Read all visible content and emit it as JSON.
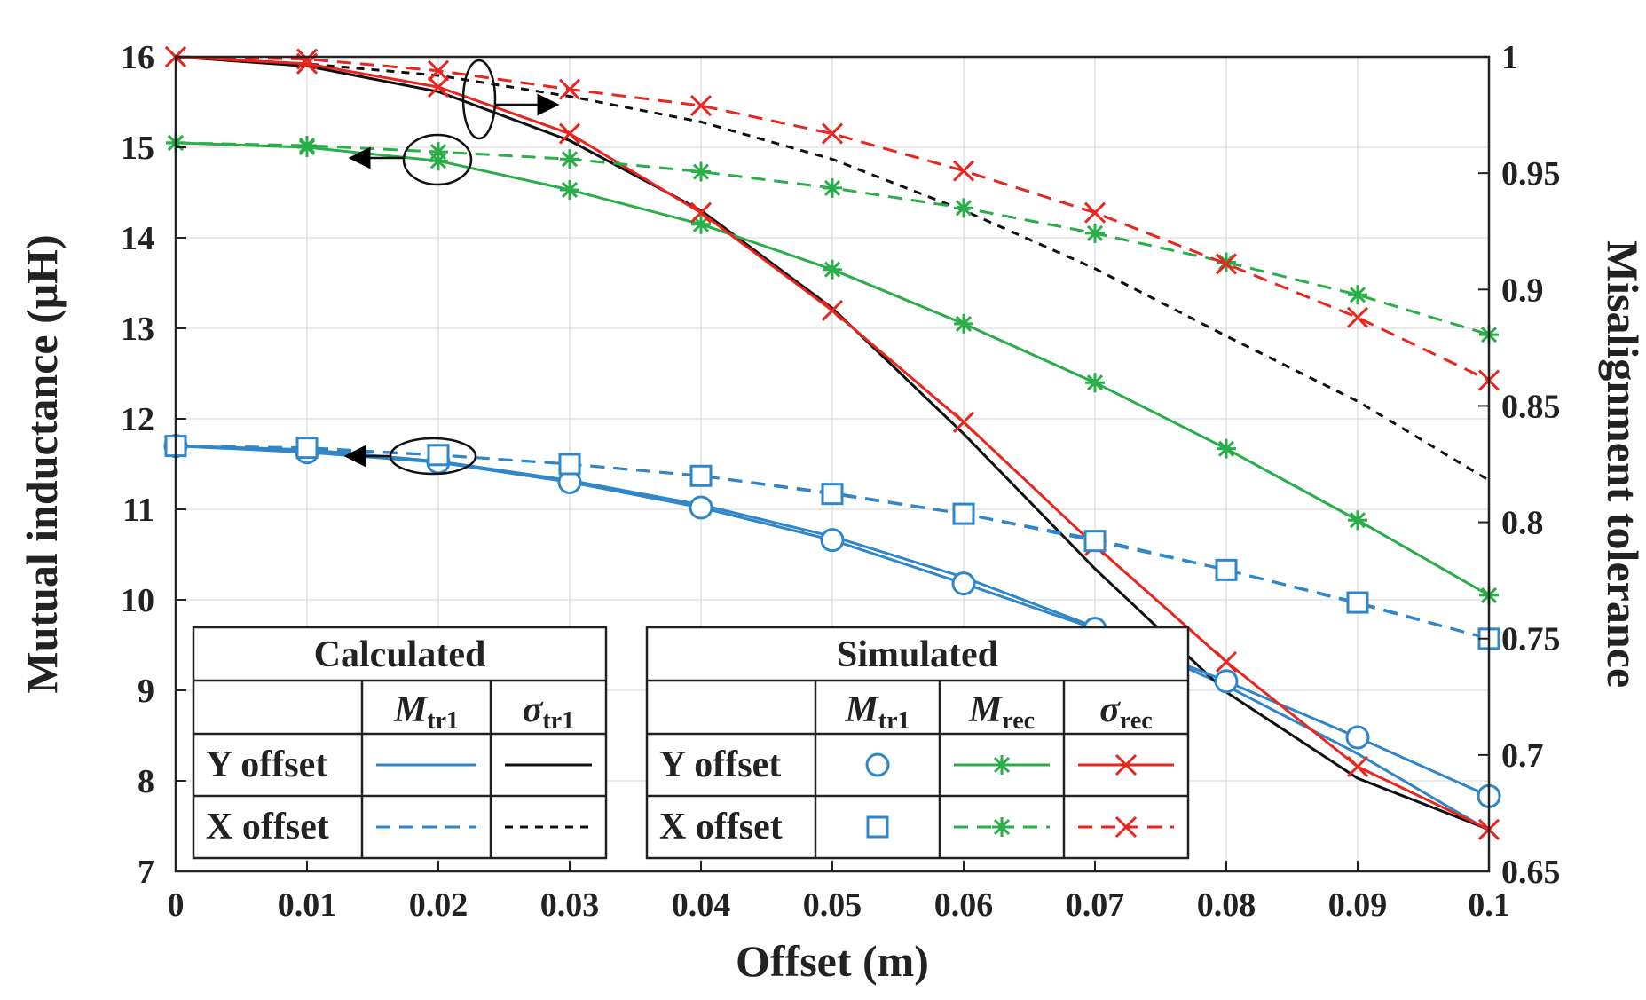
{
  "chart_data": {
    "type": "line",
    "xlabel": "Offset (m)",
    "ylabel_left": "Mutual inductance (μH)",
    "ylabel_right": "Misalignment tolerance",
    "xlim": [
      0,
      0.1
    ],
    "ylim_left": [
      7,
      16
    ],
    "ylim_right": [
      0.65,
      1
    ],
    "x_ticks": [
      "0",
      "0.01",
      "0.02",
      "0.03",
      "0.04",
      "0.05",
      "0.06",
      "0.07",
      "0.08",
      "0.09",
      "0.1"
    ],
    "y_left_ticks": [
      "7",
      "8",
      "9",
      "10",
      "11",
      "12",
      "13",
      "14",
      "15",
      "16"
    ],
    "y_right_ticks": [
      "0.65",
      "0.7",
      "0.75",
      "0.8",
      "0.85",
      "0.9",
      "0.95",
      "1"
    ],
    "grid": true,
    "x": [
      0,
      0.01,
      0.02,
      0.03,
      0.04,
      0.05,
      0.06,
      0.07,
      0.08,
      0.09,
      0.1
    ],
    "series": [
      {
        "group": "Calculated",
        "row": "Y offset",
        "quantity": "Mtr1",
        "axis": "left",
        "color": "#2f86c9",
        "dash": "solid",
        "marker": "none",
        "values": [
          11.7,
          11.66,
          11.53,
          11.32,
          11.05,
          10.7,
          10.25,
          9.7,
          9.05,
          8.3,
          7.45
        ]
      },
      {
        "group": "Calculated",
        "row": "Y offset",
        "quantity": "σtr1",
        "axis": "right",
        "color": "#111111",
        "dash": "solid",
        "marker": "none",
        "values": [
          1.0,
          0.996,
          0.985,
          0.964,
          0.934,
          0.892,
          0.838,
          0.78,
          0.727,
          0.69,
          0.668
        ]
      },
      {
        "group": "Calculated",
        "row": "X offset",
        "quantity": "Mtr1",
        "axis": "left",
        "color": "#2f86c9",
        "dash": "dashed",
        "marker": "none",
        "values": [
          11.7,
          11.67,
          11.6,
          11.5,
          11.37,
          11.18,
          10.95,
          10.67,
          10.33,
          9.96,
          9.57
        ]
      },
      {
        "group": "Calculated",
        "row": "X offset",
        "quantity": "σtr1",
        "axis": "right",
        "color": "#111111",
        "dash": "dashed",
        "marker": "none",
        "values": [
          1.0,
          0.997,
          0.992,
          0.983,
          0.972,
          0.956,
          0.934,
          0.909,
          0.88,
          0.852,
          0.818
        ]
      },
      {
        "group": "Simulated",
        "row": "Y offset",
        "quantity": "Mtr1",
        "axis": "left",
        "color": "#2f86c9",
        "dash": "solid",
        "marker": "circle",
        "values": [
          11.7,
          11.63,
          11.52,
          11.3,
          11.02,
          10.66,
          10.18,
          9.68,
          9.1,
          8.48,
          7.83
        ]
      },
      {
        "group": "Simulated",
        "row": "Y offset",
        "quantity": "Mrec",
        "axis": "left",
        "color": "#2aae49",
        "dash": "solid",
        "marker": "star",
        "values": [
          15.05,
          15.0,
          14.85,
          14.53,
          14.15,
          13.65,
          13.05,
          12.4,
          11.67,
          10.88,
          10.05
        ]
      },
      {
        "group": "Simulated",
        "row": "Y offset",
        "quantity": "σrec",
        "axis": "right",
        "color": "#e8261f",
        "dash": "solid",
        "marker": "x",
        "values": [
          1.0,
          0.997,
          0.987,
          0.967,
          0.933,
          0.891,
          0.843,
          0.79,
          0.74,
          0.695,
          0.668
        ]
      },
      {
        "group": "Simulated",
        "row": "X offset",
        "quantity": "Mtr1",
        "axis": "left",
        "color": "#2f86c9",
        "dash": "dashed",
        "marker": "square",
        "values": [
          11.7,
          11.68,
          11.6,
          11.5,
          11.37,
          11.17,
          10.95,
          10.65,
          10.33,
          9.97,
          9.57
        ]
      },
      {
        "group": "Simulated",
        "row": "X offset",
        "quantity": "Mrec",
        "axis": "left",
        "color": "#2aae49",
        "dash": "dashed",
        "marker": "star",
        "values": [
          15.05,
          15.02,
          14.95,
          14.87,
          14.73,
          14.55,
          14.33,
          14.05,
          13.73,
          13.37,
          12.93
        ]
      },
      {
        "group": "Simulated",
        "row": "X offset",
        "quantity": "σrec",
        "axis": "right",
        "color": "#e8261f",
        "dash": "dashed",
        "marker": "x",
        "values": [
          1.0,
          0.999,
          0.994,
          0.986,
          0.979,
          0.967,
          0.951,
          0.933,
          0.911,
          0.888,
          0.861
        ]
      }
    ],
    "legend": {
      "calculated": {
        "title": "Calculated",
        "columns": [
          {
            "main": "M",
            "sub": "tr1"
          },
          {
            "main": "σ",
            "sub": "tr1"
          }
        ],
        "rows": [
          "Y offset",
          "X offset"
        ]
      },
      "simulated": {
        "title": "Simulated",
        "columns": [
          {
            "main": "M",
            "sub": "tr1"
          },
          {
            "main": "M",
            "sub": "rec"
          },
          {
            "main": "σ",
            "sub": "rec"
          }
        ],
        "rows": [
          "Y offset",
          "X offset"
        ]
      }
    }
  }
}
